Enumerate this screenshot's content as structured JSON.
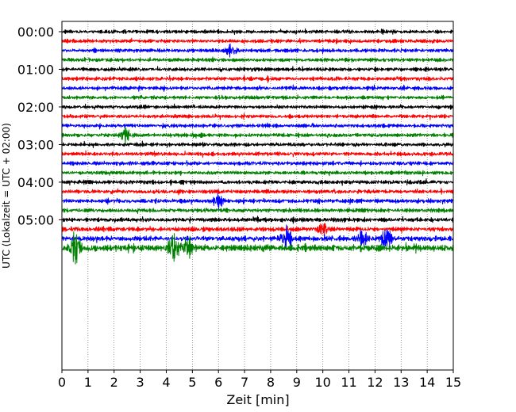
{
  "chart_data": {
    "type": "line",
    "title": "",
    "xlabel": "Zeit  [min]",
    "ylabel": "UTC (Lokalzeit = UTC + 02:00)",
    "xlim": [
      0,
      15
    ],
    "x_ticks": [
      0,
      1,
      2,
      3,
      4,
      5,
      6,
      7,
      8,
      9,
      10,
      11,
      12,
      13,
      14,
      15
    ],
    "x_tick_labels": [
      "0",
      "1",
      "2",
      "3",
      "4",
      "5",
      "6",
      "7",
      "8",
      "9",
      "10",
      "11",
      "12",
      "13",
      "14",
      "15"
    ],
    "y_tick_labels": [
      "00:00",
      "01:00",
      "02:00",
      "03:00",
      "04:00",
      "05:00"
    ],
    "minutes_per_trace": 15,
    "grid": "vertical dotted lines at every minute",
    "trace_colors": [
      "#000000",
      "#ff0000",
      "#0000ff",
      "#008000"
    ],
    "traces": [
      {
        "start": "00:00",
        "color": "#000000",
        "amplitude": 0.28
      },
      {
        "start": "00:15",
        "color": "#ff0000",
        "amplitude": 0.28
      },
      {
        "start": "00:30",
        "color": "#0000ff",
        "amplitude": 0.28
      },
      {
        "start": "00:45",
        "color": "#008000",
        "amplitude": 0.28
      },
      {
        "start": "01:00",
        "color": "#000000",
        "amplitude": 0.28
      },
      {
        "start": "01:15",
        "color": "#ff0000",
        "amplitude": 0.3
      },
      {
        "start": "01:30",
        "color": "#0000ff",
        "amplitude": 0.28
      },
      {
        "start": "01:45",
        "color": "#008000",
        "amplitude": 0.28
      },
      {
        "start": "02:00",
        "color": "#000000",
        "amplitude": 0.26
      },
      {
        "start": "02:15",
        "color": "#ff0000",
        "amplitude": 0.28
      },
      {
        "start": "02:30",
        "color": "#0000ff",
        "amplitude": 0.28
      },
      {
        "start": "02:45",
        "color": "#008000",
        "amplitude": 0.3
      },
      {
        "start": "03:00",
        "color": "#000000",
        "amplitude": 0.28
      },
      {
        "start": "03:15",
        "color": "#ff0000",
        "amplitude": 0.3
      },
      {
        "start": "03:30",
        "color": "#0000ff",
        "amplitude": 0.3
      },
      {
        "start": "03:45",
        "color": "#008000",
        "amplitude": 0.28
      },
      {
        "start": "04:00",
        "color": "#000000",
        "amplitude": 0.3
      },
      {
        "start": "04:15",
        "color": "#ff0000",
        "amplitude": 0.3
      },
      {
        "start": "04:30",
        "color": "#0000ff",
        "amplitude": 0.32
      },
      {
        "start": "04:45",
        "color": "#008000",
        "amplitude": 0.32
      },
      {
        "start": "05:00",
        "color": "#000000",
        "amplitude": 0.32
      },
      {
        "start": "05:15",
        "color": "#ff0000",
        "amplitude": 0.34
      },
      {
        "start": "05:30",
        "color": "#0000ff",
        "amplitude": 0.4
      },
      {
        "start": "05:45",
        "color": "#008000",
        "amplitude": 0.5
      }
    ],
    "events": [
      {
        "trace": 11,
        "minute": 2.45,
        "amplitude": 1.3
      },
      {
        "trace": 2,
        "minute": 6.5,
        "amplitude": 0.9
      },
      {
        "trace": 22,
        "minute": 8.6,
        "amplitude": 1.8
      },
      {
        "trace": 22,
        "minute": 12.4,
        "amplitude": 1.6
      },
      {
        "trace": 22,
        "minute": 11.5,
        "amplitude": 1.2
      },
      {
        "trace": 23,
        "minute": 0.5,
        "amplitude": 2.2
      },
      {
        "trace": 23,
        "minute": 4.25,
        "amplitude": 2.6
      },
      {
        "trace": 23,
        "minute": 4.8,
        "amplitude": 1.5
      },
      {
        "trace": 18,
        "minute": 6.0,
        "amplitude": 1.0
      },
      {
        "trace": 21,
        "minute": 10.0,
        "amplitude": 0.9
      }
    ]
  }
}
